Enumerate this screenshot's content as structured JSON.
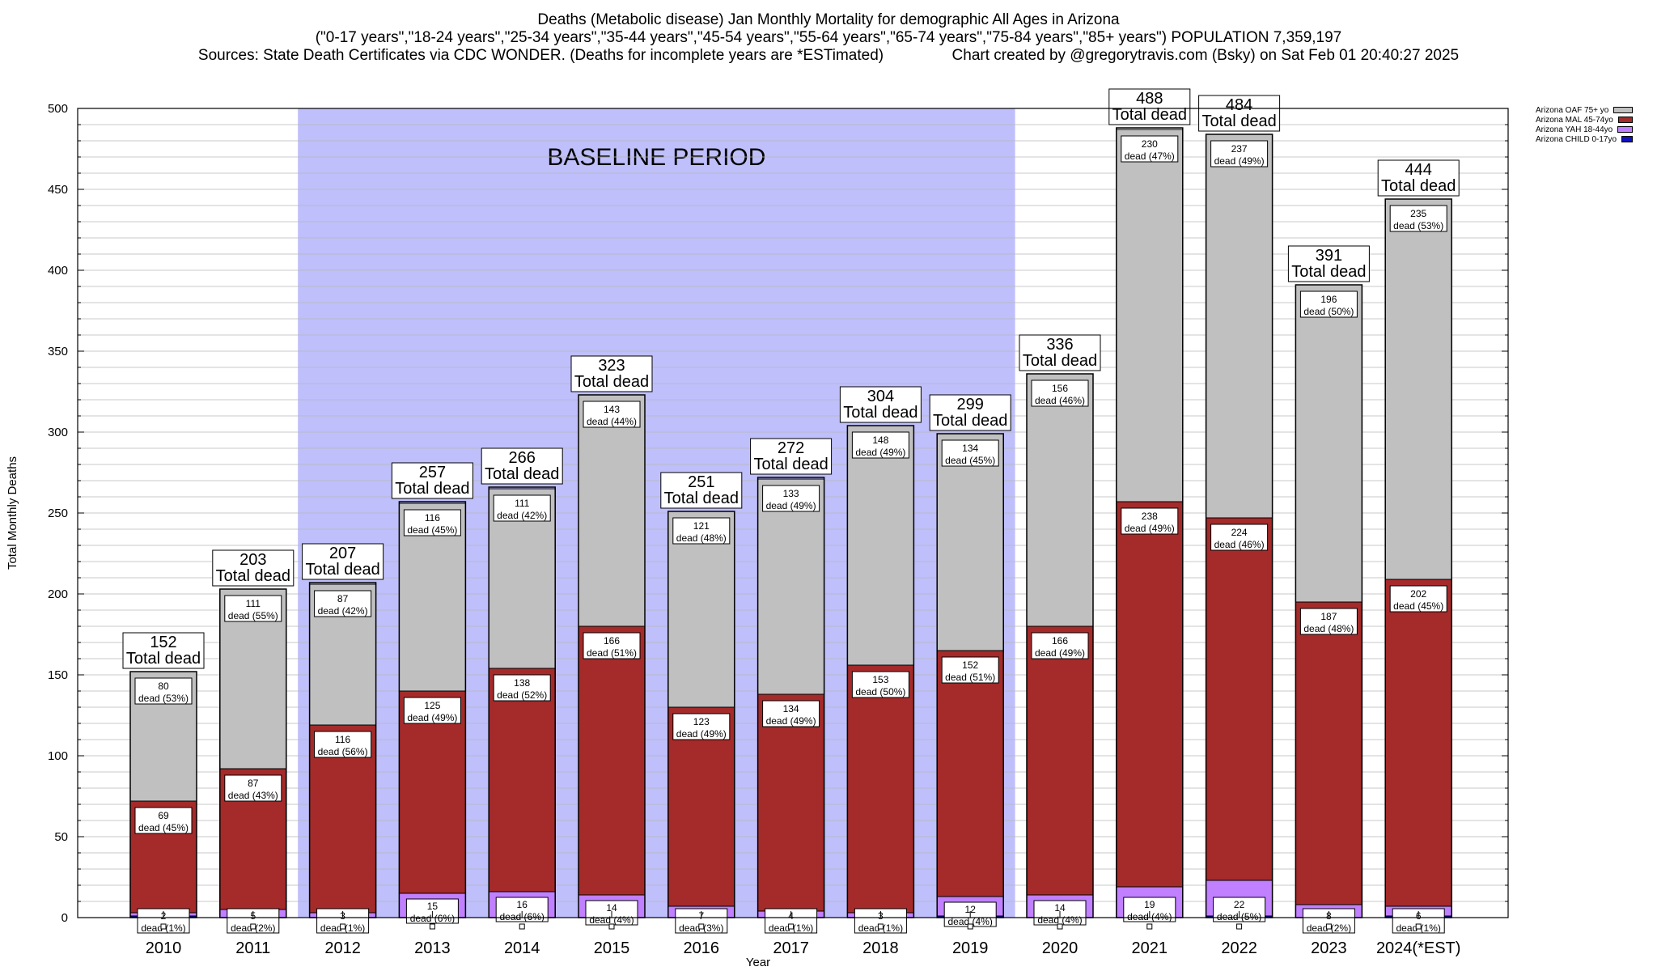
{
  "header": {
    "line1": "Deaths (Metabolic disease) Jan Monthly Mortality for demographic All Ages in Arizona",
    "line2": "(\"0-17 years\",\"18-24 years\",\"25-34 years\",\"35-44 years\",\"45-54 years\",\"55-64 years\",\"65-74 years\",\"75-84 years\",\"85+ years\") POPULATION 7,359,197",
    "line3": "Sources: State Death Certificates via CDC WONDER. (Deaths for incomplete years are *ESTimated)                Chart created by @gregorytravis.com (Bsky) on Sat Feb 01 20:40:27 2025"
  },
  "chart_data": {
    "type": "bar",
    "stacked": true,
    "xlabel": "Year",
    "ylabel": "Total Monthly Deaths",
    "ylim": [
      0,
      500
    ],
    "yticks": [
      0,
      50,
      100,
      150,
      200,
      250,
      300,
      350,
      400,
      450,
      500
    ],
    "grid": true,
    "legend_position": "top-right",
    "baseline": {
      "label": "BASELINE PERIOD",
      "from": "2012",
      "to": "2019"
    },
    "total_label": "Total dead",
    "segment_label_word": "dead",
    "categories": [
      "2010",
      "2011",
      "2012",
      "2013",
      "2014",
      "2015",
      "2016",
      "2017",
      "2018",
      "2019",
      "2020",
      "2021",
      "2022",
      "2023",
      "2024(*EST)"
    ],
    "totals": [
      152,
      203,
      207,
      257,
      266,
      323,
      251,
      272,
      304,
      299,
      336,
      488,
      484,
      391,
      444
    ],
    "series": [
      {
        "name": "Arizona CHILD 0-17yo",
        "color": "#1010c0",
        "values": [
          1,
          0,
          0,
          0,
          0,
          0,
          0,
          0,
          0,
          1,
          0,
          0,
          1,
          0,
          1
        ],
        "labels": [],
        "pcts": []
      },
      {
        "name": "Arizona YAH 18-44yo",
        "color": "#c080ff",
        "values": [
          2,
          5,
          3,
          15,
          16,
          14,
          7,
          4,
          3,
          12,
          14,
          19,
          22,
          8,
          6
        ],
        "labels": [
          2,
          5,
          3,
          15,
          16,
          14,
          7,
          4,
          3,
          12,
          14,
          19,
          22,
          8,
          6
        ],
        "pcts": [
          "1%",
          "2%",
          "1%",
          "6%",
          "6%",
          "4%",
          "3%",
          "1%",
          "1%",
          "4%",
          "4%",
          "4%",
          "5%",
          "2%",
          "1%"
        ]
      },
      {
        "name": "Arizona MAL 45-74yo",
        "color": "#a52a2a",
        "values": [
          69,
          87,
          116,
          125,
          138,
          166,
          123,
          134,
          153,
          152,
          166,
          238,
          224,
          187,
          202
        ],
        "labels": [
          69,
          87,
          116,
          125,
          138,
          166,
          123,
          134,
          153,
          152,
          166,
          238,
          224,
          187,
          202
        ],
        "pcts": [
          "45%",
          "43%",
          "56%",
          "49%",
          "52%",
          "51%",
          "49%",
          "49%",
          "50%",
          "51%",
          "49%",
          "49%",
          "46%",
          "48%",
          "45%"
        ]
      },
      {
        "name": "Arizona OAF 75+ yo",
        "color": "#c0c0c0",
        "values": [
          80,
          111,
          87,
          116,
          111,
          143,
          121,
          133,
          148,
          134,
          156,
          230,
          237,
          196,
          235
        ],
        "labels": [
          80,
          111,
          87,
          116,
          111,
          143,
          121,
          133,
          148,
          134,
          156,
          230,
          237,
          196,
          235
        ],
        "pcts": [
          "53%",
          "55%",
          "42%",
          "45%",
          "42%",
          "44%",
          "48%",
          "49%",
          "49%",
          "45%",
          "46%",
          "47%",
          "49%",
          "50%",
          "53%"
        ]
      }
    ],
    "legend_order": [
      "Arizona OAF 75+ yo",
      "Arizona MAL 45-74yo",
      "Arizona YAH 18-44yo",
      "Arizona CHILD 0-17yo"
    ]
  }
}
